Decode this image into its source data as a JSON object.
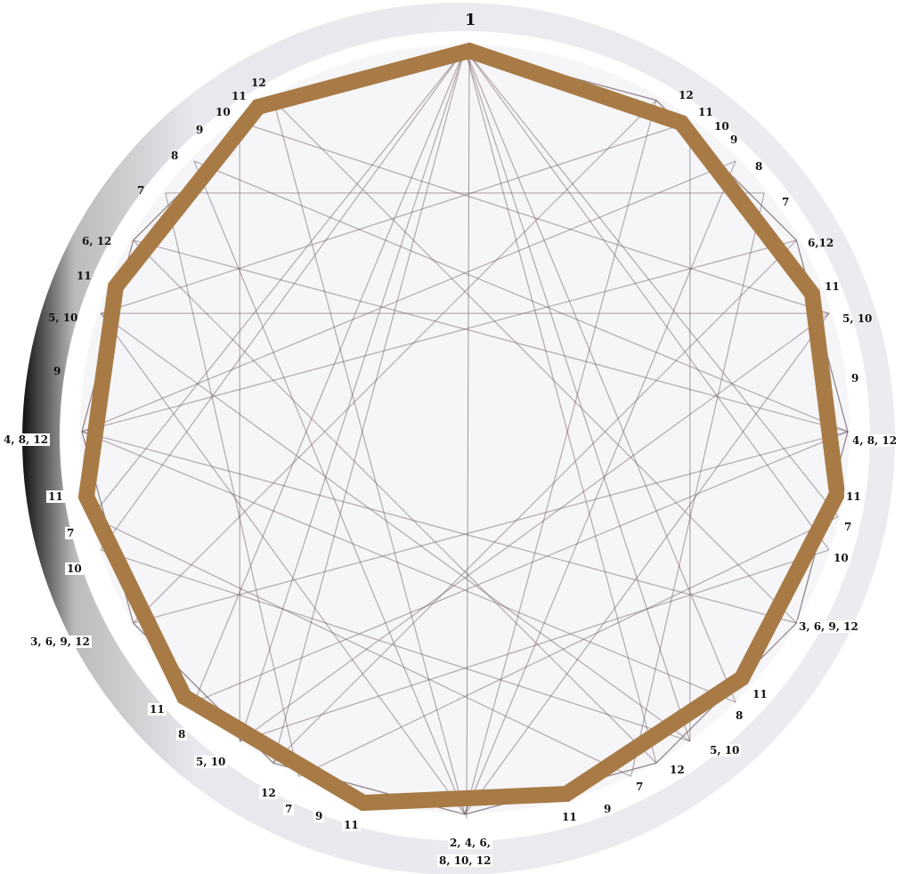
{
  "colors": {
    "polygon": "#a87b46",
    "chords": "#6b5560",
    "rim": "#e4e4ea",
    "rim_dark": "#222222"
  },
  "top_label": "1",
  "labels": [
    "12",
    "11",
    "10",
    "9",
    "8",
    "7",
    "6, 12",
    "11",
    "5, 10",
    "9",
    "4, 8, 12",
    "11",
    "7",
    "10",
    "3, 6, 9, 12",
    "11",
    "8",
    "5, 10",
    "12",
    "7",
    "9",
    "11",
    "2, 4, 6,",
    "8, 10, 12",
    "11",
    "9",
    "7",
    "12",
    "5, 10",
    "8",
    "11",
    "3, 6, 9, 12",
    "10",
    "7",
    "11",
    "4, 8, 12",
    "9",
    "5, 10",
    "11",
    "6,12",
    "7",
    "8",
    "9",
    "10",
    "11",
    "12"
  ]
}
